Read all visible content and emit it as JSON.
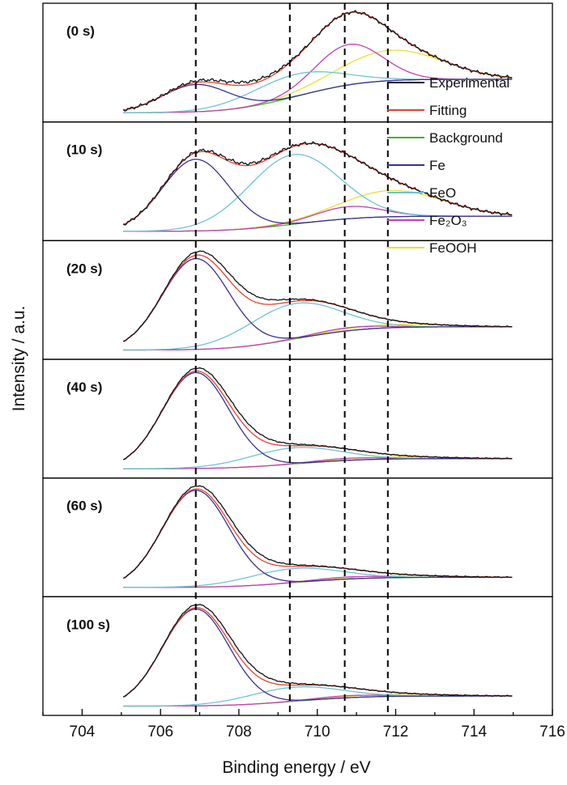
{
  "chart_data": {
    "type": "line",
    "title": "",
    "xlabel": "Binding energy / eV",
    "ylabel": "Intensity / a.u.",
    "xlim": [
      703,
      716
    ],
    "x_ticks": [
      "704",
      "706",
      "708",
      "710",
      "712",
      "714",
      "716"
    ],
    "x_tick_values": [
      704,
      706,
      708,
      710,
      712,
      714,
      716
    ],
    "reference_lines_eV": [
      706.9,
      709.3,
      710.7,
      711.8
    ],
    "colors": {
      "Experimental": "#111111",
      "Fitting": "#e8412f",
      "Background": "#45b02f",
      "Fe": "#3b2f91",
      "FeO": "#6fc3d2",
      "Fe2O3": "#c040b8",
      "FeOOH": "#e8e035"
    },
    "legend": [
      {
        "key": "Experimental",
        "label": "Experimental"
      },
      {
        "key": "Fitting",
        "label": "Fitting"
      },
      {
        "key": "Background",
        "label": "Background"
      },
      {
        "key": "Fe",
        "label": "Fe"
      },
      {
        "key": "FeO",
        "label": "FeO"
      },
      {
        "key": "Fe2O3",
        "label": "Fe₂O₃"
      },
      {
        "key": "FeOOH",
        "label": "FeOOH"
      }
    ],
    "peaks_eV": {
      "Fe": 706.9,
      "FeO": 709.4,
      "Fe2O3": 710.8,
      "FeOOH": 711.9
    },
    "panels": [
      {
        "label": "(0 s)",
        "bg_start": 0.02,
        "bg_end": 0.35,
        "Fe": 0.27,
        "FeO": 0.22,
        "Fe2O3": 0.4,
        "FeOOH": 0.3,
        "exp_shift": 0.03
      },
      {
        "label": "(10 s)",
        "bg_start": 0.02,
        "bg_end": 0.17,
        "Fe": 0.71,
        "FeO": 0.69,
        "Fe2O3": 0.12,
        "FeOOH": 0.26,
        "exp_shift": 0.02
      },
      {
        "label": "(20 s)",
        "bg_start": 0.02,
        "bg_end": 0.25,
        "Fe": 0.9,
        "FeO": 0.35,
        "Fe2O3": 0.03,
        "FeOOH": 0.03,
        "exp_shift": 0.07
      },
      {
        "label": "(40 s)",
        "bg_start": 0.02,
        "bg_end": 0.12,
        "Fe": 0.95,
        "FeO": 0.16,
        "Fe2O3": 0.02,
        "FeOOH": 0.02,
        "exp_shift": 0.06
      },
      {
        "label": "(60 s)",
        "bg_start": 0.02,
        "bg_end": 0.12,
        "Fe": 0.96,
        "FeO": 0.14,
        "Fe2O3": 0.02,
        "FeOOH": 0.02,
        "exp_shift": 0.06
      },
      {
        "label": "(100 s)",
        "bg_start": 0.02,
        "bg_end": 0.12,
        "Fe": 0.96,
        "FeO": 0.14,
        "Fe2O3": 0.02,
        "FeOOH": 0.02,
        "exp_shift": 0.06
      }
    ]
  }
}
